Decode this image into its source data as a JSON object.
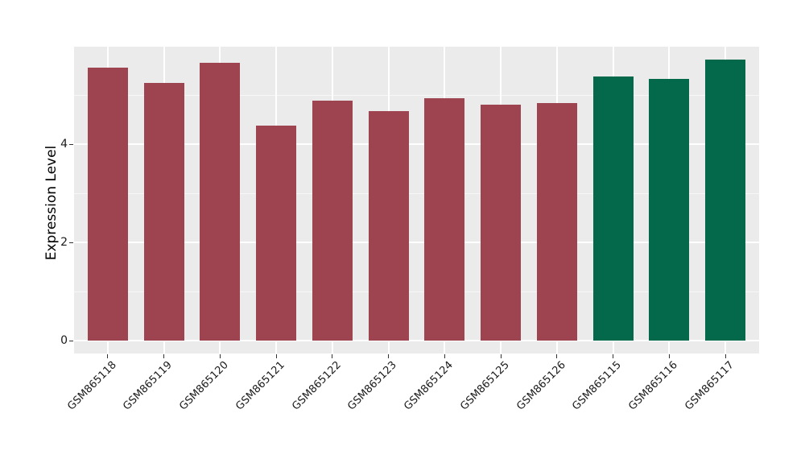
{
  "figure": {
    "background": "#FFFFFF",
    "panel_background": "#EBEBEB",
    "grid_color": "#FFFFFF",
    "tick_mark_color": "#333333",
    "text_color": "#1A1A1A"
  },
  "chart_data": {
    "type": "bar",
    "title": "",
    "xlabel": "",
    "ylabel": "Expression Level",
    "categories": [
      "GSM865118",
      "GSM865119",
      "GSM865120",
      "GSM865121",
      "GSM865122",
      "GSM865123",
      "GSM865124",
      "GSM865125",
      "GSM865126",
      "GSM865115",
      "GSM865116",
      "GSM865117"
    ],
    "values": [
      5.56,
      5.24,
      5.66,
      4.38,
      4.89,
      4.67,
      4.94,
      4.81,
      4.84,
      5.38,
      5.32,
      5.72
    ],
    "bar_colors": [
      "#9D4450",
      "#9D4450",
      "#9D4450",
      "#9D4450",
      "#9D4450",
      "#9D4450",
      "#9D4450",
      "#9D4450",
      "#9D4450",
      "#03694A",
      "#03694A",
      "#03694A"
    ],
    "color_groups": [
      {
        "color": "#9D4450",
        "count": 9
      },
      {
        "color": "#03694A",
        "count": 3
      }
    ],
    "yticks": {
      "values": [
        0,
        2,
        4
      ],
      "labels": [
        "0",
        "2",
        "4"
      ]
    },
    "ylim": [
      -0.26,
      6.02
    ],
    "grid": {
      "major_y": [
        0,
        2,
        4,
        6
      ],
      "minor_y": [
        1,
        3,
        5
      ],
      "vertical_major_at_each_category": true
    },
    "legend_position": "none",
    "x_tick_rotation_deg": 45
  }
}
